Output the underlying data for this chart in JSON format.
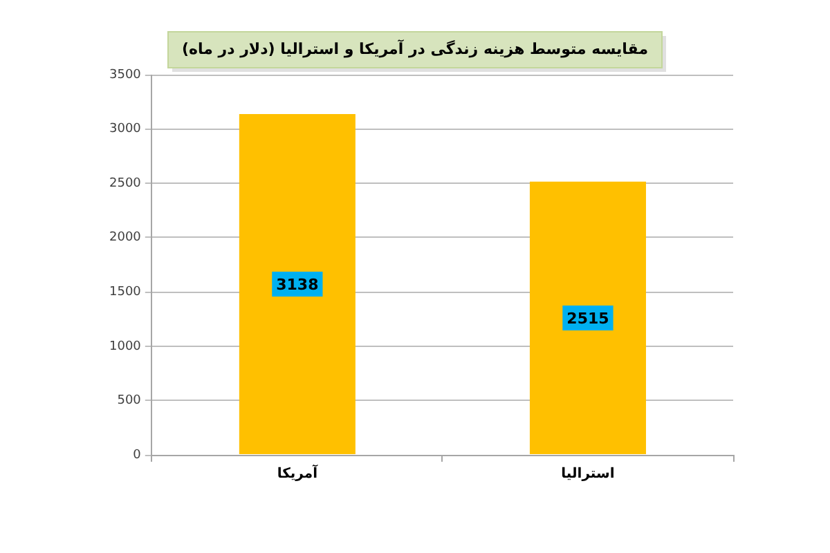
{
  "chart_data": {
    "type": "bar",
    "title": "مقایسه متوسط هزینه زندگی در آمریکا و استرالیا (دلار در ماه)",
    "categories": [
      "آمریکا",
      "استرالیا"
    ],
    "values": [
      3138,
      2515
    ],
    "color": "#ffc000",
    "ylim": [
      0,
      3500
    ],
    "yticks": [
      0,
      500,
      1000,
      1500,
      2000,
      2500,
      3000,
      3500
    ],
    "grid": "y",
    "data_labels": true
  }
}
